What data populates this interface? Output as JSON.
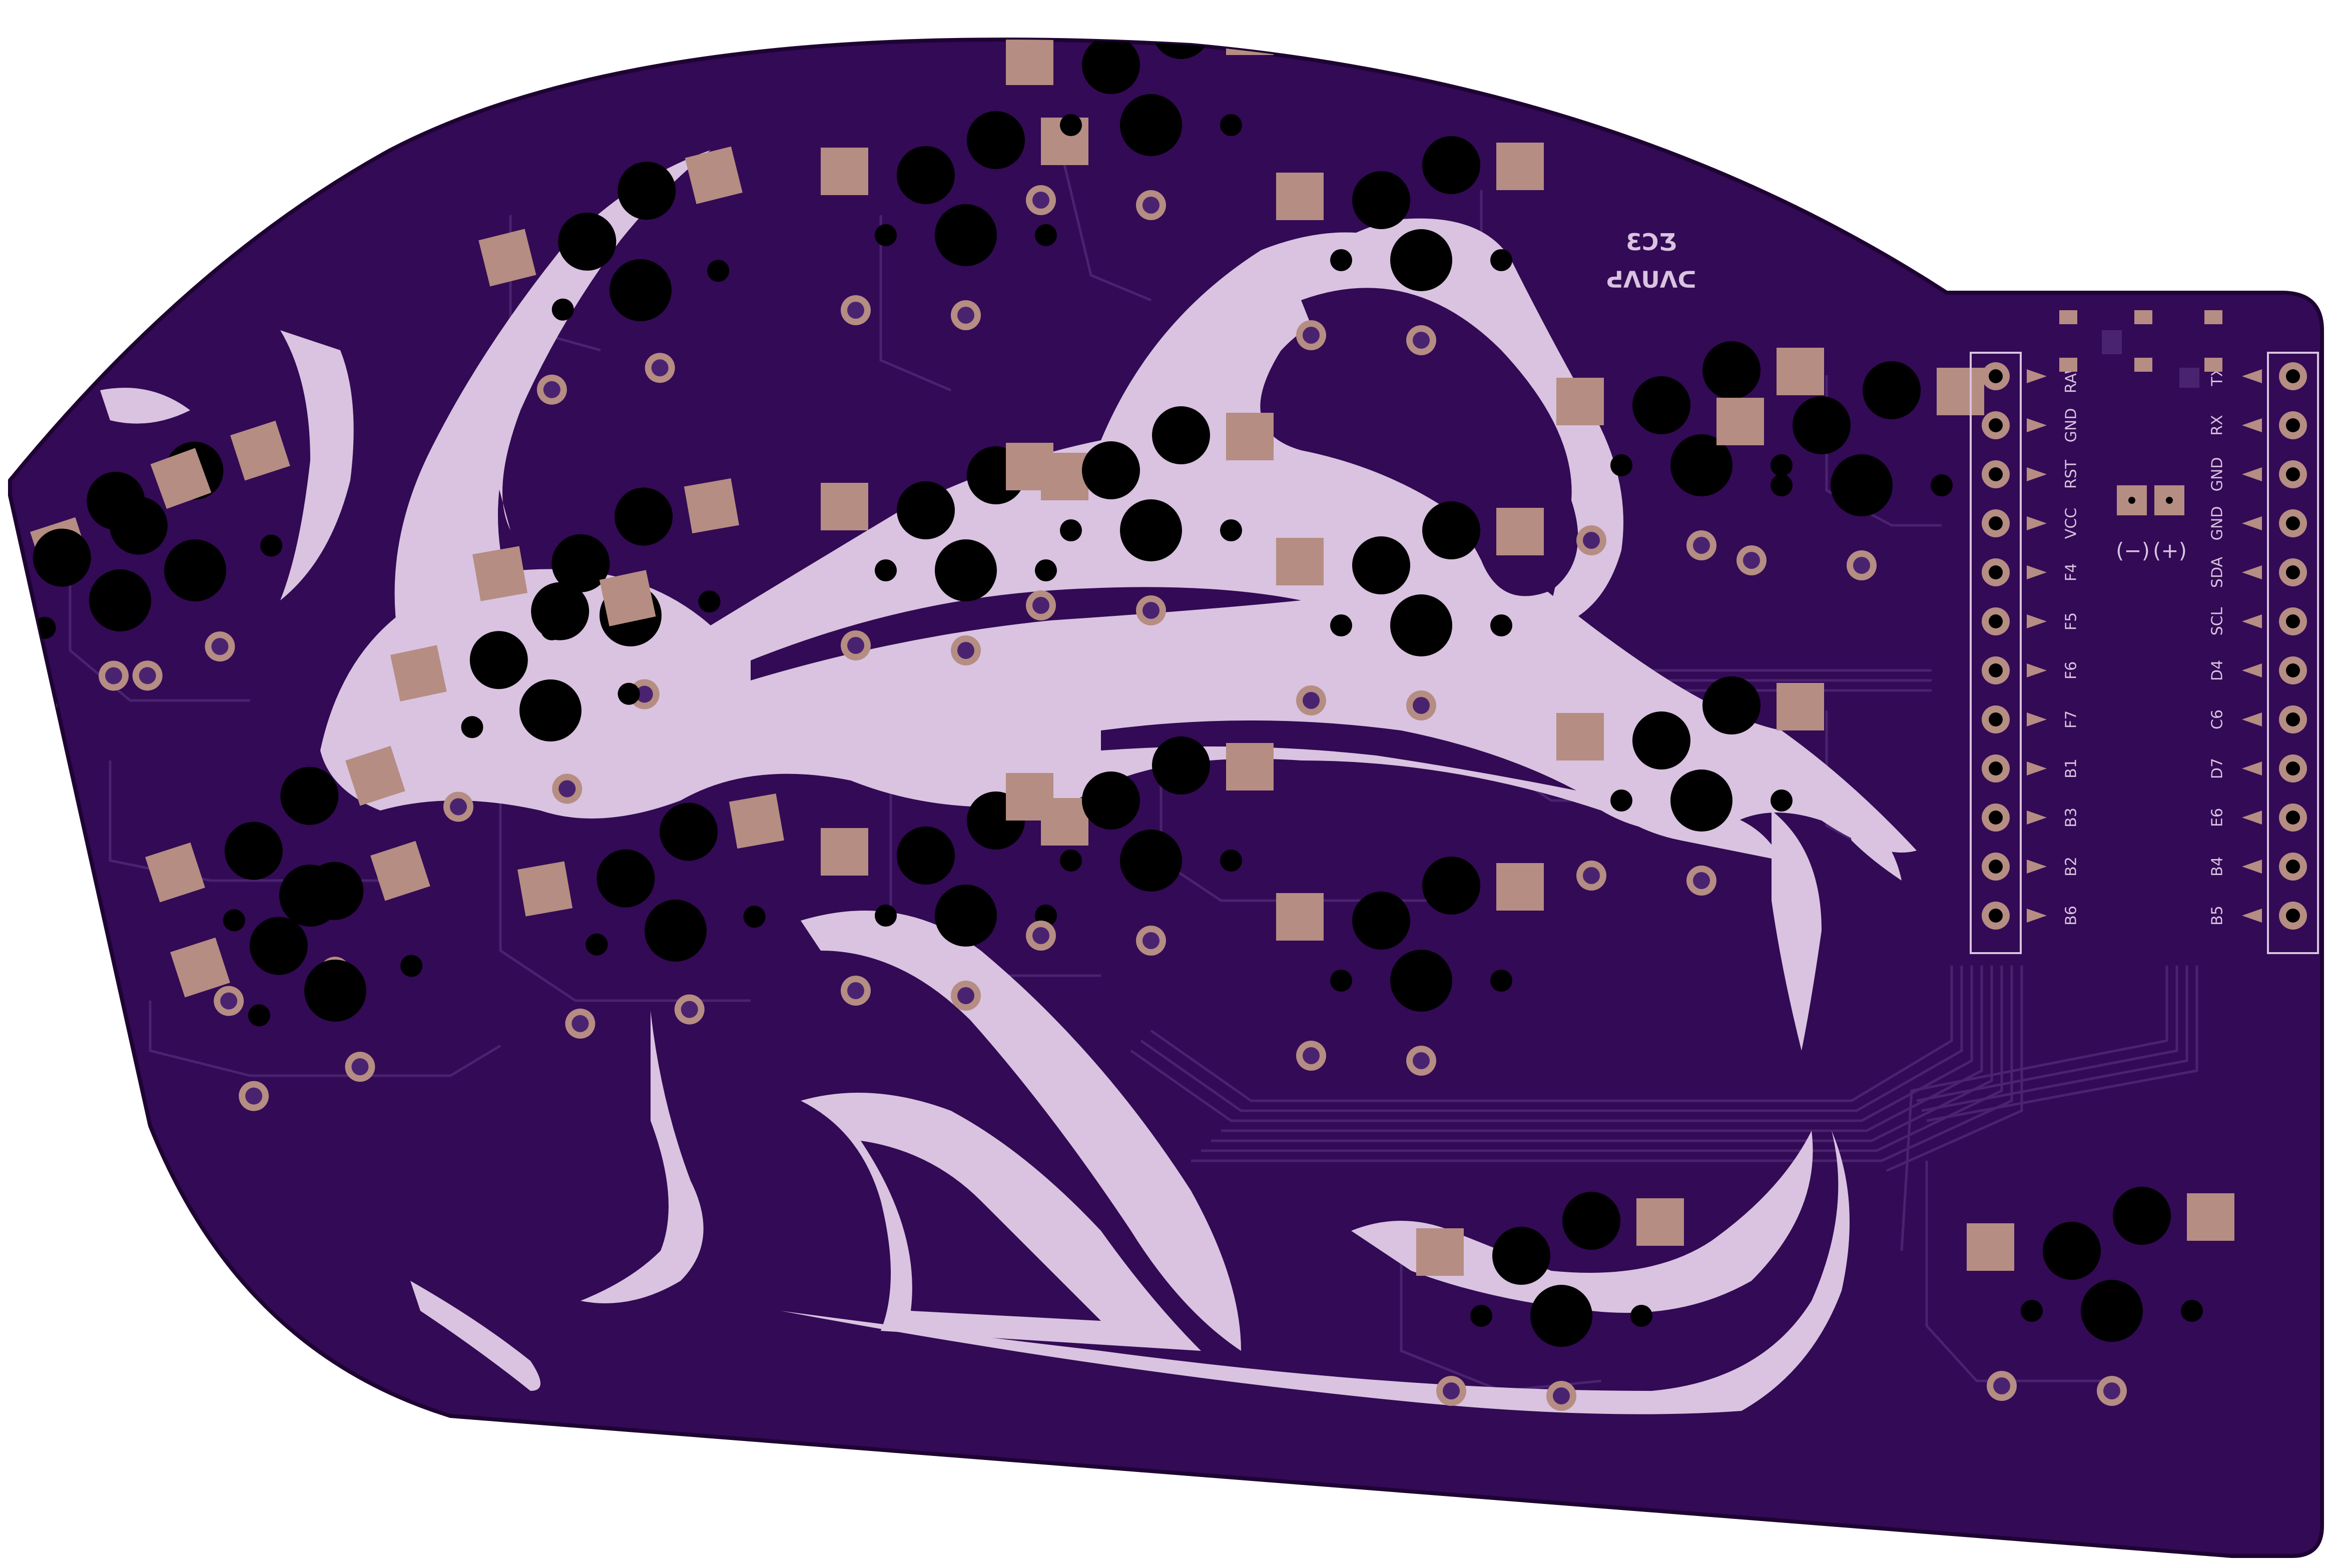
{
  "board": {
    "logo_text": "ƐƆƷ",
    "logo_subtext": "ᕍᐱᑌᐱᑕ",
    "left_header_pins": [
      "RAW",
      "GND",
      "RST",
      "VCC",
      "F4",
      "F5",
      "F6",
      "F7",
      "B1",
      "B3",
      "B2",
      "B6"
    ],
    "right_header_pins": [
      "TX",
      "RX",
      "GND",
      "GND",
      "SDA",
      "SCL",
      "D4",
      "C6",
      "D7",
      "E6",
      "B4",
      "B5"
    ],
    "battery_minus": "(−)",
    "battery_plus": "(+)"
  },
  "colors": {
    "board": "#330a55",
    "outline": "#1e0333",
    "silkscreen": "#d9c3e0",
    "pad": "#b58d82",
    "ring": "#b58d82",
    "hole": "#000000",
    "trace": "#4a2370"
  }
}
